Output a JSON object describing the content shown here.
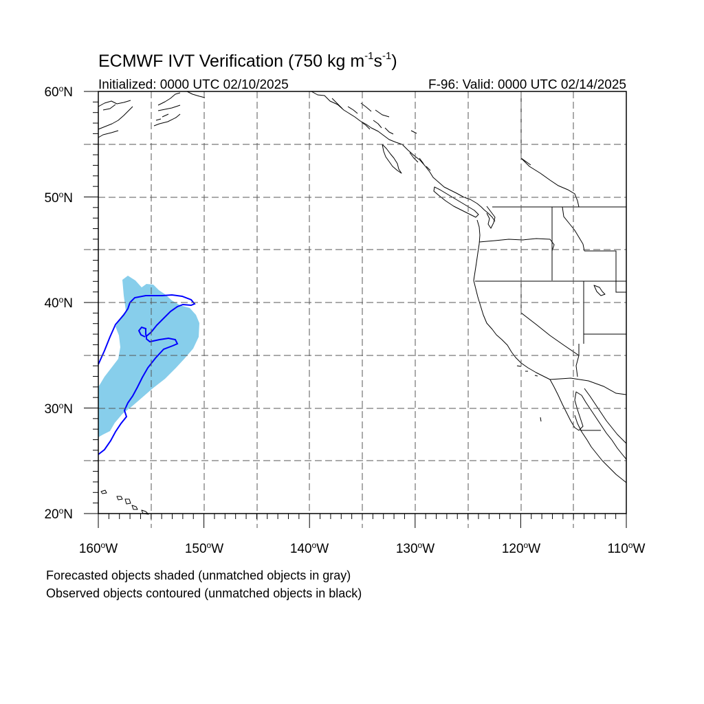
{
  "title": {
    "main": "ECMWF IVT Verification (750 kg m",
    "exp1": "-1",
    "mid": "s",
    "exp2": "-1",
    "close": ")"
  },
  "subtitle": {
    "initialized": "Initialized: 0000 UTC 02/10/2025",
    "valid": "F-96: Valid: 0000 UTC 02/14/2025"
  },
  "lat_labels": {
    "lat60": "60",
    "lat50": "50",
    "lat40": "40",
    "lat30": "30",
    "lat20": "20",
    "deg": "o",
    "dir": "N"
  },
  "lon_labels": {
    "lon160": "160",
    "lon150": "150",
    "lon140": "140",
    "lon130": "130",
    "lon120": "120",
    "lon110": "110",
    "deg": "o",
    "dir": "W"
  },
  "notes": {
    "line1": "Forecasted objects shaded (unmatched objects in gray)",
    "line2": "Observed objects contoured (unmatched objects in black)"
  },
  "map": {
    "extent": {
      "lon_west": -160,
      "lon_east": -110,
      "lat_south": 20,
      "lat_north": 60
    },
    "gridlines": "dashed every 5 degrees",
    "forecast_object_color": "#87ceeb",
    "observed_contour_color": "#0000ff",
    "coastline_color": "#000000"
  }
}
